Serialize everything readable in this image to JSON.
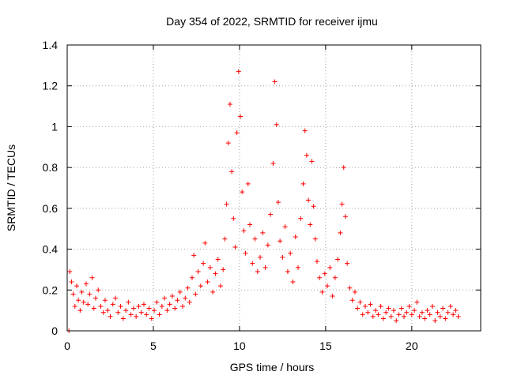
{
  "chart_data": {
    "type": "scatter",
    "title": "Day 354 of 2022, SRMTID for receiver ijmu",
    "xlabel": "GPS time / hours",
    "ylabel": "SRMTID / TECUs",
    "xlim": [
      0,
      24
    ],
    "ylim": [
      0,
      1.4
    ],
    "xticks": [
      0,
      5,
      10,
      15,
      20
    ],
    "xtick_labels": [
      "0",
      "5",
      "10",
      "15",
      "20"
    ],
    "yticks": [
      0,
      0.2,
      0.4,
      0.6,
      0.8,
      1.0,
      1.2,
      1.4
    ],
    "ytick_labels": [
      "0",
      "0.2",
      "0.4",
      "0.6",
      "0.8",
      "1",
      "1.2",
      "1.4"
    ],
    "grid": true,
    "marker": "+",
    "series": [
      {
        "name": "SRMTID",
        "color": "#ff0000",
        "points": [
          [
            0.1,
            0.0
          ],
          [
            0.15,
            0.29
          ],
          [
            0.25,
            0.24
          ],
          [
            0.35,
            0.18
          ],
          [
            0.45,
            0.12
          ],
          [
            0.55,
            0.22
          ],
          [
            0.65,
            0.15
          ],
          [
            0.75,
            0.1
          ],
          [
            0.85,
            0.19
          ],
          [
            0.95,
            0.14
          ],
          [
            1.1,
            0.23
          ],
          [
            1.2,
            0.13
          ],
          [
            1.3,
            0.18
          ],
          [
            1.45,
            0.26
          ],
          [
            1.55,
            0.11
          ],
          [
            1.65,
            0.16
          ],
          [
            1.8,
            0.2
          ],
          [
            1.95,
            0.12
          ],
          [
            2.1,
            0.09
          ],
          [
            2.2,
            0.15
          ],
          [
            2.35,
            0.1
          ],
          [
            2.5,
            0.07
          ],
          [
            2.65,
            0.13
          ],
          [
            2.8,
            0.16
          ],
          [
            2.95,
            0.09
          ],
          [
            3.1,
            0.12
          ],
          [
            3.25,
            0.06
          ],
          [
            3.4,
            0.1
          ],
          [
            3.55,
            0.14
          ],
          [
            3.7,
            0.08
          ],
          [
            3.85,
            0.11
          ],
          [
            4.0,
            0.07
          ],
          [
            4.15,
            0.12
          ],
          [
            4.3,
            0.09
          ],
          [
            4.45,
            0.13
          ],
          [
            4.6,
            0.08
          ],
          [
            4.75,
            0.11
          ],
          [
            4.9,
            0.06
          ],
          [
            5.05,
            0.1
          ],
          [
            5.2,
            0.14
          ],
          [
            5.35,
            0.08
          ],
          [
            5.5,
            0.12
          ],
          [
            5.65,
            0.16
          ],
          [
            5.8,
            0.1
          ],
          [
            5.95,
            0.13
          ],
          [
            6.1,
            0.17
          ],
          [
            6.25,
            0.11
          ],
          [
            6.4,
            0.15
          ],
          [
            6.55,
            0.19
          ],
          [
            6.7,
            0.12
          ],
          [
            6.85,
            0.16
          ],
          [
            7.0,
            0.21
          ],
          [
            7.1,
            0.14
          ],
          [
            7.25,
            0.26
          ],
          [
            7.35,
            0.37
          ],
          [
            7.45,
            0.18
          ],
          [
            7.6,
            0.29
          ],
          [
            7.75,
            0.22
          ],
          [
            7.9,
            0.33
          ],
          [
            8.0,
            0.43
          ],
          [
            8.15,
            0.24
          ],
          [
            8.3,
            0.31
          ],
          [
            8.45,
            0.19
          ],
          [
            8.6,
            0.28
          ],
          [
            8.75,
            0.35
          ],
          [
            8.9,
            0.22
          ],
          [
            9.05,
            0.3
          ],
          [
            9.15,
            0.45
          ],
          [
            9.25,
            0.62
          ],
          [
            9.35,
            0.92
          ],
          [
            9.45,
            1.11
          ],
          [
            9.55,
            0.78
          ],
          [
            9.65,
            0.55
          ],
          [
            9.75,
            0.41
          ],
          [
            9.85,
            0.97
          ],
          [
            9.95,
            1.27
          ],
          [
            10.05,
            1.05
          ],
          [
            10.15,
            0.68
          ],
          [
            10.25,
            0.49
          ],
          [
            10.35,
            0.38
          ],
          [
            10.5,
            0.72
          ],
          [
            10.6,
            0.52
          ],
          [
            10.75,
            0.33
          ],
          [
            10.9,
            0.45
          ],
          [
            11.05,
            0.29
          ],
          [
            11.2,
            0.36
          ],
          [
            11.35,
            0.48
          ],
          [
            11.5,
            0.31
          ],
          [
            11.65,
            0.42
          ],
          [
            11.8,
            0.57
          ],
          [
            11.95,
            0.82
          ],
          [
            12.05,
            1.22
          ],
          [
            12.15,
            1.01
          ],
          [
            12.25,
            0.63
          ],
          [
            12.35,
            0.44
          ],
          [
            12.5,
            0.36
          ],
          [
            12.65,
            0.51
          ],
          [
            12.8,
            0.29
          ],
          [
            12.95,
            0.38
          ],
          [
            13.1,
            0.24
          ],
          [
            13.25,
            0.46
          ],
          [
            13.4,
            0.31
          ],
          [
            13.55,
            0.55
          ],
          [
            13.7,
            0.72
          ],
          [
            13.8,
            0.98
          ],
          [
            13.9,
            0.86
          ],
          [
            14.0,
            0.64
          ],
          [
            14.1,
            0.52
          ],
          [
            14.2,
            0.83
          ],
          [
            14.3,
            0.61
          ],
          [
            14.4,
            0.45
          ],
          [
            14.5,
            0.34
          ],
          [
            14.65,
            0.26
          ],
          [
            14.8,
            0.19
          ],
          [
            14.95,
            0.28
          ],
          [
            15.1,
            0.22
          ],
          [
            15.25,
            0.31
          ],
          [
            15.4,
            0.17
          ],
          [
            15.55,
            0.26
          ],
          [
            15.7,
            0.35
          ],
          [
            15.85,
            0.48
          ],
          [
            15.95,
            0.62
          ],
          [
            16.05,
            0.8
          ],
          [
            16.15,
            0.56
          ],
          [
            16.25,
            0.33
          ],
          [
            16.4,
            0.21
          ],
          [
            16.55,
            0.15
          ],
          [
            16.7,
            0.19
          ],
          [
            16.85,
            0.11
          ],
          [
            17.0,
            0.14
          ],
          [
            17.15,
            0.08
          ],
          [
            17.3,
            0.12
          ],
          [
            17.45,
            0.09
          ],
          [
            17.6,
            0.13
          ],
          [
            17.75,
            0.07
          ],
          [
            17.9,
            0.1
          ],
          [
            18.05,
            0.08
          ],
          [
            18.2,
            0.12
          ],
          [
            18.35,
            0.06
          ],
          [
            18.5,
            0.09
          ],
          [
            18.65,
            0.11
          ],
          [
            18.8,
            0.07
          ],
          [
            18.95,
            0.1
          ],
          [
            19.1,
            0.05
          ],
          [
            19.25,
            0.08
          ],
          [
            19.4,
            0.11
          ],
          [
            19.55,
            0.07
          ],
          [
            19.7,
            0.09
          ],
          [
            19.85,
            0.12
          ],
          [
            20.0,
            0.08
          ],
          [
            20.15,
            0.1
          ],
          [
            20.3,
            0.14
          ],
          [
            20.45,
            0.07
          ],
          [
            20.6,
            0.09
          ],
          [
            20.75,
            0.06
          ],
          [
            20.9,
            0.1
          ],
          [
            21.05,
            0.08
          ],
          [
            21.2,
            0.12
          ],
          [
            21.35,
            0.05
          ],
          [
            21.5,
            0.09
          ],
          [
            21.65,
            0.07
          ],
          [
            21.8,
            0.11
          ],
          [
            21.95,
            0.06
          ],
          [
            22.1,
            0.09
          ],
          [
            22.25,
            0.12
          ],
          [
            22.4,
            0.08
          ],
          [
            22.55,
            0.1
          ],
          [
            22.7,
            0.07
          ]
        ]
      }
    ]
  }
}
